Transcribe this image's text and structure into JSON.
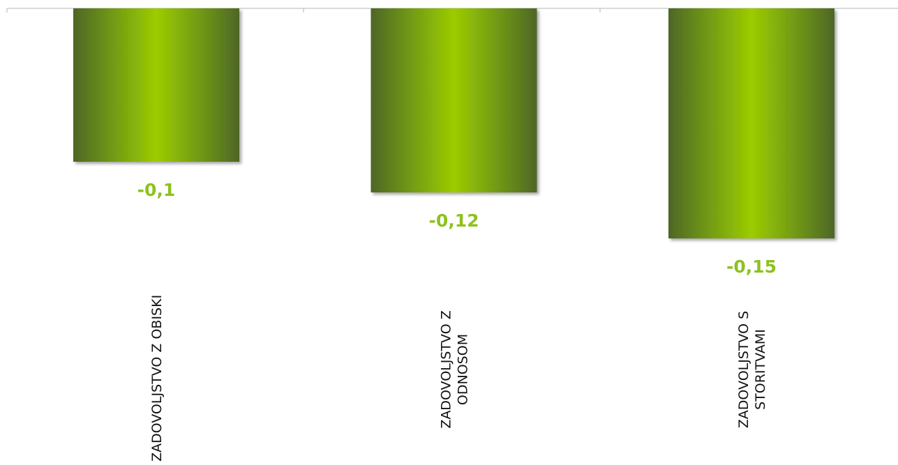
{
  "chart_data": {
    "type": "bar",
    "categories": [
      [
        "ZADOVOLJSTVO Z OBISKI"
      ],
      [
        "ZADOVOLJSTVO Z",
        "ODNOSOM"
      ],
      [
        "ZADOVOLJSTVO S",
        "STORITVAMI"
      ]
    ],
    "values": [
      -0.1,
      -0.12,
      -0.15
    ],
    "data_labels": [
      "-0,1",
      "-0,12",
      "-0,15"
    ],
    "ylim": [
      -0.15,
      0
    ],
    "grid": false,
    "legend": "none",
    "colors": {
      "bar_edge": "#4e6626",
      "bar_mid": "#6e9616",
      "bar_center": "#9ccc00",
      "data_label": "#8dc21f",
      "axis": "#b5b5b5"
    }
  }
}
